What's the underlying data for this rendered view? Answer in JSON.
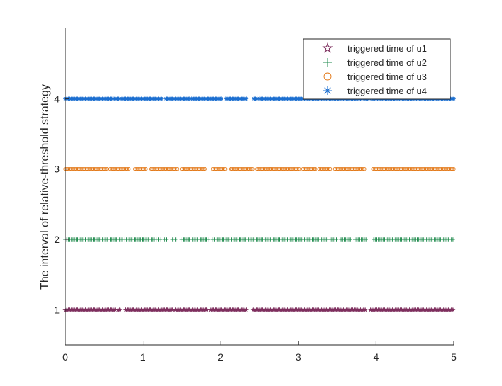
{
  "chart_data": {
    "type": "scatter",
    "title": "",
    "xlabel": "",
    "ylabel": "The interval of relative-threshold strategy",
    "xlim": [
      0,
      5
    ],
    "ylim": [
      0.5,
      5
    ],
    "xticks": [
      "0",
      "1",
      "2",
      "3",
      "4",
      "5"
    ],
    "yticks": [
      "1",
      "2",
      "3",
      "4"
    ],
    "grid": false,
    "legend_position": "top-right",
    "series": [
      {
        "name": "triggered time of u1",
        "y": 1,
        "marker": "pentagram",
        "color": "#7E2F5E",
        "segments": [
          [
            0.0,
            0.65
          ],
          [
            0.68,
            0.7
          ],
          [
            0.78,
            0.9
          ],
          [
            0.92,
            1.38
          ],
          [
            1.42,
            1.82
          ],
          [
            1.87,
            2.34
          ],
          [
            2.42,
            3.86
          ],
          [
            3.93,
            5.0
          ]
        ]
      },
      {
        "name": "triggered time of u2",
        "y": 2,
        "marker": "plus",
        "color": "#1E8A4C",
        "segments": [
          [
            0.0,
            0.1
          ],
          [
            0.12,
            0.55
          ],
          [
            0.58,
            0.6
          ],
          [
            0.62,
            0.75
          ],
          [
            0.77,
            1.15
          ],
          [
            1.18,
            1.22
          ],
          [
            1.28,
            1.3
          ],
          [
            1.38,
            1.42
          ],
          [
            1.5,
            1.6
          ],
          [
            1.64,
            1.85
          ],
          [
            1.9,
            2.72
          ],
          [
            2.74,
            3.0
          ],
          [
            3.02,
            3.38
          ],
          [
            3.41,
            3.5
          ],
          [
            3.55,
            3.68
          ],
          [
            3.73,
            3.88
          ],
          [
            3.97,
            5.0
          ]
        ]
      },
      {
        "name": "triggered time of u3",
        "y": 3,
        "marker": "circle",
        "color": "#E37A1B",
        "segments": [
          [
            0.0,
            0.55
          ],
          [
            0.58,
            0.83
          ],
          [
            0.9,
            1.05
          ],
          [
            1.1,
            1.45
          ],
          [
            1.5,
            1.8
          ],
          [
            1.9,
            2.07
          ],
          [
            2.13,
            2.42
          ],
          [
            2.47,
            3.02
          ],
          [
            3.06,
            3.22
          ],
          [
            3.27,
            3.42
          ],
          [
            3.47,
            3.86
          ],
          [
            3.96,
            5.0
          ]
        ]
      },
      {
        "name": "triggered time of u4",
        "y": 4,
        "marker": "asterisk",
        "color": "#1C6FD0",
        "segments": [
          [
            0.0,
            0.6
          ],
          [
            0.63,
            0.7
          ],
          [
            0.72,
            1.25
          ],
          [
            1.3,
            1.6
          ],
          [
            1.63,
            2.02
          ],
          [
            2.07,
            2.34
          ],
          [
            2.43,
            2.47
          ],
          [
            2.5,
            3.82
          ],
          [
            3.85,
            3.92
          ],
          [
            3.94,
            5.0
          ]
        ]
      }
    ]
  }
}
